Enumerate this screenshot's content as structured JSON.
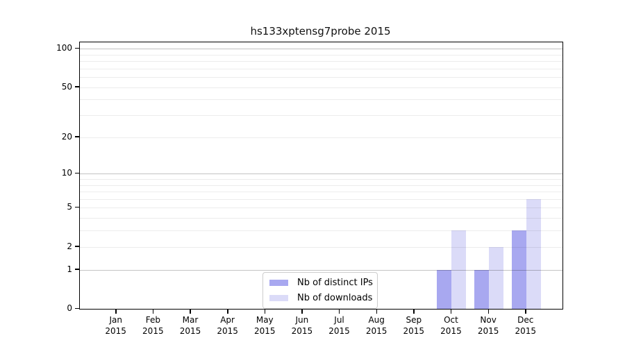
{
  "chart_data": {
    "type": "bar",
    "title": "hs133xptensg7probe 2015",
    "categories": [
      "Jan",
      "Feb",
      "Mar",
      "Apr",
      "May",
      "Jun",
      "Jul",
      "Aug",
      "Sep",
      "Oct",
      "Nov",
      "Dec"
    ],
    "category_year": "2015",
    "series": [
      {
        "name": "Nb of distinct IPs",
        "color": "#a8a8f0",
        "values": [
          0,
          0,
          0,
          0,
          0,
          0,
          0,
          0,
          0,
          1,
          1,
          3
        ]
      },
      {
        "name": "Nb of downloads",
        "color": "#dbdbf8",
        "values": [
          0,
          0,
          0,
          0,
          0,
          0,
          0,
          0,
          0,
          3,
          2,
          6
        ]
      }
    ],
    "y_axis": {
      "scale": "log1p",
      "ylim": [
        0,
        112
      ],
      "ticks": [
        0,
        1,
        2,
        5,
        10,
        20,
        50,
        100
      ],
      "minor_ticks": [
        3,
        4,
        6,
        7,
        8,
        9,
        30,
        40,
        60,
        70,
        80,
        90
      ],
      "major_grid": [
        1,
        10,
        100
      ]
    },
    "legend": {
      "position": "bottom-center"
    },
    "grid": "on",
    "colors": {
      "frame": "#000000",
      "major_grid": "#c3c3c3",
      "minor_grid": "#ebebeb",
      "text": "#000000"
    }
  }
}
